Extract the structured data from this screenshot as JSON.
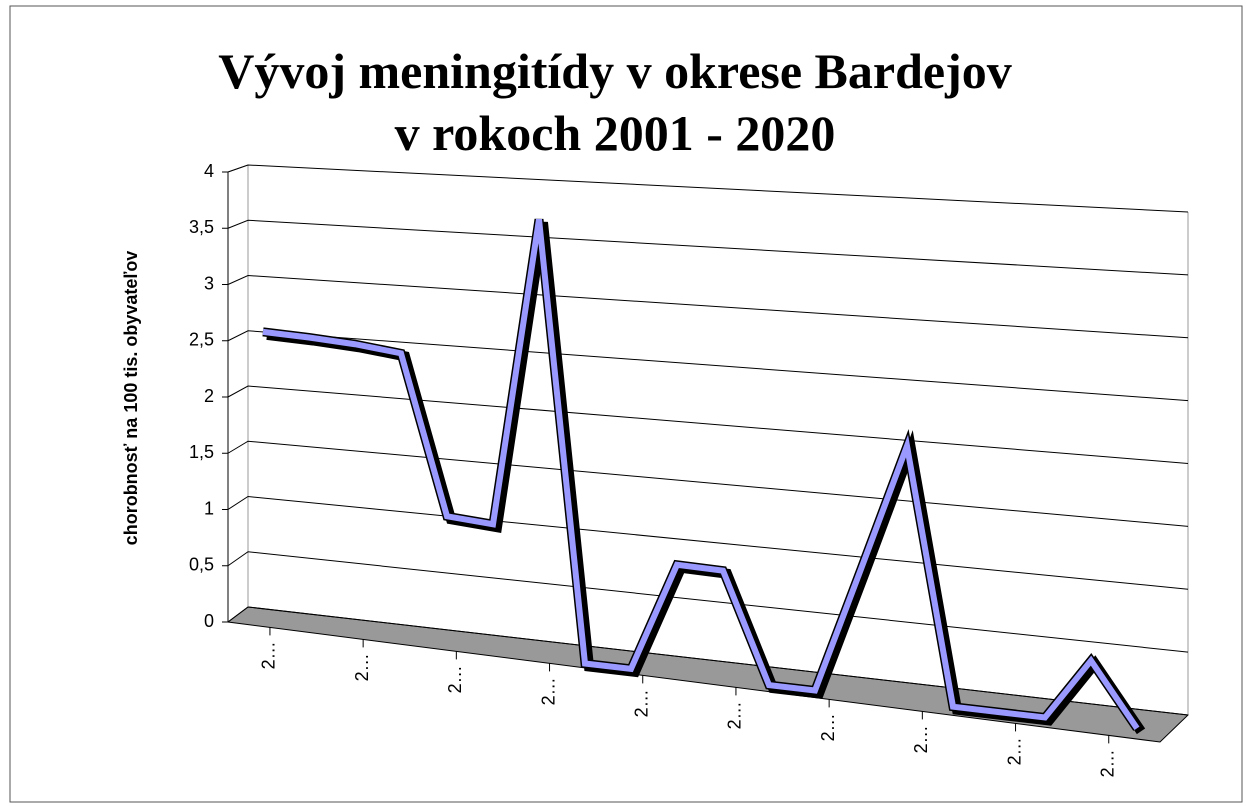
{
  "chart_data": {
    "type": "line3d",
    "title": "Vývoj meningitídy v okrese Bardejov",
    "subtitle": "v rokoch 2001 - 2020",
    "y_label": "chorobnosť na 100 tis. obyvateľov",
    "categories": [
      "2…",
      null,
      "2…",
      null,
      "2…",
      null,
      "2…",
      null,
      "2…",
      null,
      "2…",
      null,
      "2…",
      null,
      "2…",
      null,
      "2…",
      null,
      "2…",
      null
    ],
    "series": [
      {
        "name": "chorobnosť",
        "color": "#9999ff",
        "values": [
          2.65,
          2.63,
          2.6,
          2.55,
          1.15,
          1.12,
          3.8,
          0,
          0,
          0.93,
          0.92,
          0,
          0,
          1.05,
          2.1,
          0,
          0,
          0,
          0.5,
          0
        ]
      }
    ],
    "ylim": [
      0,
      4
    ],
    "yticks": [
      0,
      {
        "value": 0.5,
        "label": "0,5"
      },
      1,
      {
        "value": 1.5,
        "label": "1,5"
      },
      2,
      {
        "value": 2.5,
        "label": "2,5"
      },
      3,
      {
        "value": 3.5,
        "label": "3,5"
      },
      4
    ],
    "grid": true
  }
}
